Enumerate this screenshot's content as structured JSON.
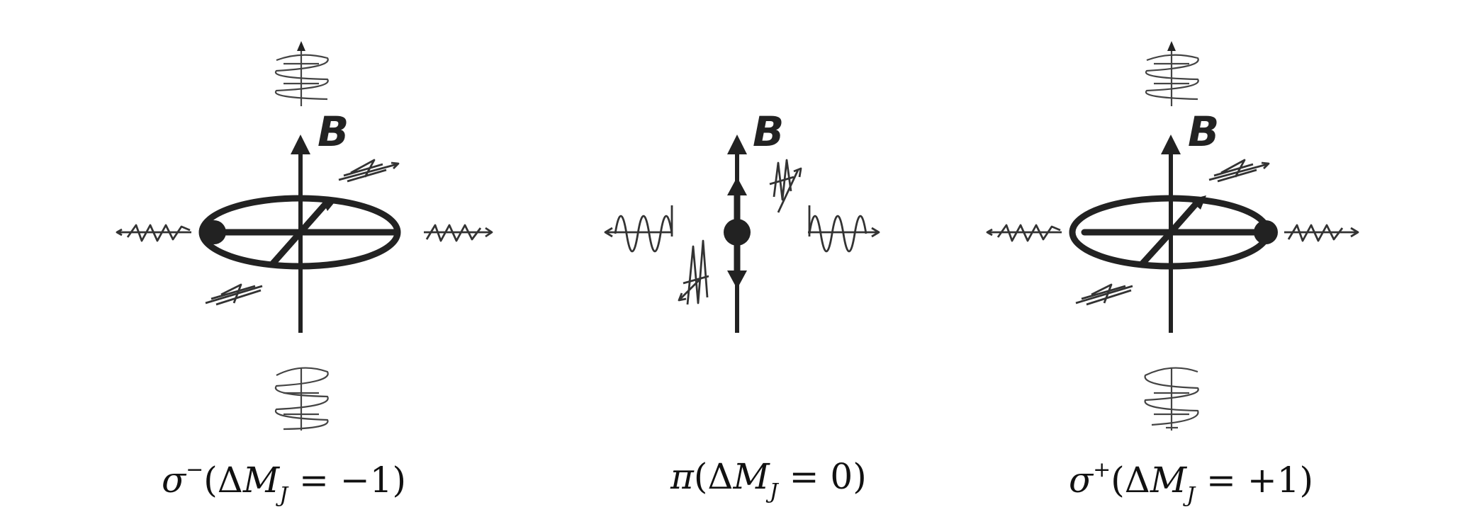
{
  "diagram": {
    "field_label": "B",
    "panels": [
      {
        "id": "sigma-minus",
        "symbol": "σ",
        "superscript": "−",
        "open": "(Δ",
        "var": "M",
        "subscript": "J",
        "relation": " = −1)"
      },
      {
        "id": "pi",
        "symbol": "π",
        "superscript": "",
        "open": "(Δ",
        "var": "M",
        "subscript": "J",
        "relation": " = 0)"
      },
      {
        "id": "sigma-plus",
        "symbol": "σ",
        "superscript": "+",
        "open": "(Δ",
        "var": "M",
        "subscript": "J",
        "relation": " = +1)"
      }
    ]
  }
}
